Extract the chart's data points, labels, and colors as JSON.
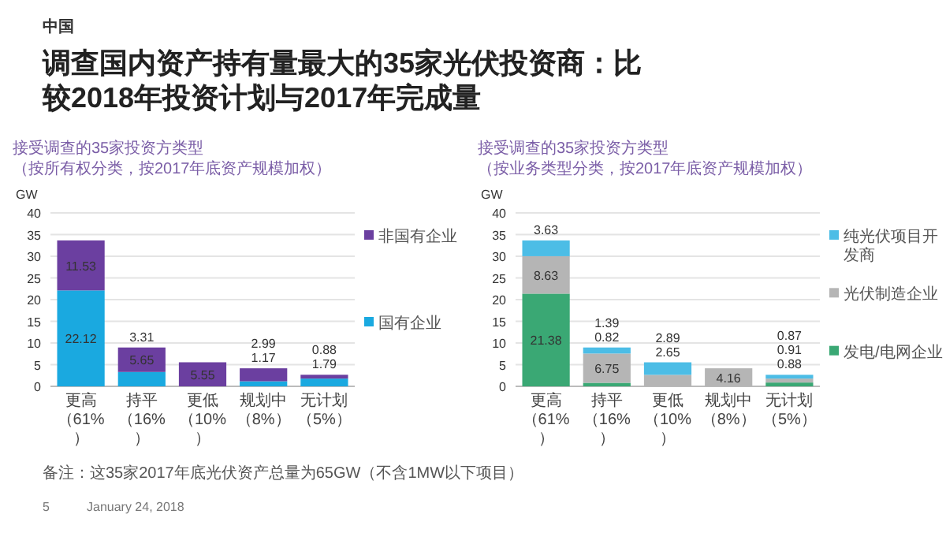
{
  "chart_data": [
    {
      "type": "other",
      "subtitle": "中国",
      "title": "调查国内资产持有量最大的35家光伏投资商：比较2018年投资计划与2017年完成量",
      "annotations": [
        "备注：这35家2017年底光伏资产总量为65GW（不含1MW以下项目）",
        "5",
        "January 24, 2018"
      ]
    },
    {
      "type": "bar",
      "stacked": true,
      "subtitle": "接受调查的35家投资方类型（按所有权分类，按2017年底资产规模加权）",
      "ylabel": "GW",
      "categories": [
        "更高（61%）",
        "持平（16%）",
        "更低（10%）",
        "规划中（8%）",
        "无计划（5%）"
      ],
      "series": [
        {
          "name": "国有企业",
          "color": "#1aa9e0",
          "values": [
            22.12,
            3.31,
            null,
            1.17,
            1.79
          ]
        },
        {
          "name": "非国有企业",
          "color": "#6b3fa0",
          "values": [
            11.53,
            5.65,
            5.55,
            2.99,
            0.88
          ]
        }
      ],
      "ylim": [
        0,
        40
      ],
      "yticks": [
        0,
        5,
        10,
        15,
        20,
        25,
        30,
        35,
        40
      ],
      "grid": "y",
      "legend": "right",
      "data_labels": true
    },
    {
      "type": "bar",
      "stacked": true,
      "subtitle": "接受调查的35家投资方类型（按业务类型分类，按2017年底资产规模加权）",
      "ylabel": "GW",
      "categories": [
        "更高（61%）",
        "持平（16%）",
        "更低（10%）",
        "规划中（8%）",
        "无计划（5%）"
      ],
      "series": [
        {
          "name": "发电/电网企业",
          "color": "#3aa874",
          "values": [
            21.38,
            0.82,
            null,
            null,
            0.88
          ]
        },
        {
          "name": "光伏制造企业",
          "color": "#b5b5b5",
          "values": [
            8.63,
            6.75,
            2.65,
            4.16,
            0.91
          ]
        },
        {
          "name": "纯光伏项目开发商",
          "color": "#4cbde6",
          "values": [
            3.63,
            1.39,
            2.89,
            null,
            0.87
          ]
        }
      ],
      "ylim": [
        0,
        40
      ],
      "yticks": [
        0,
        5,
        10,
        15,
        20,
        25,
        30,
        35,
        40
      ],
      "grid": "y",
      "legend": "right",
      "data_labels": true
    }
  ]
}
